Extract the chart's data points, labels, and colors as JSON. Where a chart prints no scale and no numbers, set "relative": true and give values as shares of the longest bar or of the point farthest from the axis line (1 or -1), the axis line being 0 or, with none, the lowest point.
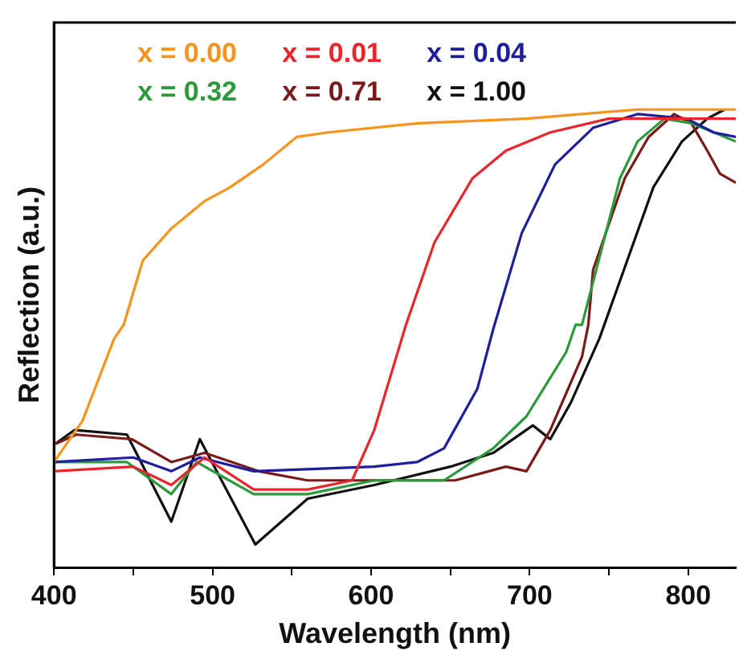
{
  "chart_data": {
    "type": "line",
    "xlabel": "Wavelength (nm)",
    "ylabel": "Reflection (a.u.)",
    "relative": true,
    "xlim": [
      400,
      830
    ],
    "xticks": [
      400,
      {
        "value": 450,
        "label": null
      },
      500,
      {
        "value": 550,
        "label": null
      },
      600,
      {
        "value": 650,
        "label": null
      },
      700,
      {
        "value": 750,
        "label": null
      },
      800
    ],
    "legend": "top left",
    "grid": false,
    "marker": "none",
    "line_style": "solid",
    "series": [
      {
        "name": "x = 0.00",
        "color": "#f7941d",
        "x": [
          400,
          418,
          438,
          444,
          456,
          474,
          495,
          511,
          532,
          553,
          573,
          630,
          698,
          768,
          830
        ],
        "values": [
          0.23,
          0.32,
          0.5,
          0.53,
          0.67,
          0.74,
          0.8,
          0.83,
          0.88,
          0.94,
          0.95,
          0.97,
          0.98,
          1.0,
          1.0
        ]
      },
      {
        "name": "x = 0.01",
        "color": "#e8262c",
        "x": [
          400,
          450,
          474,
          495,
          526,
          560,
          588,
          602,
          622,
          640,
          664,
          685,
          713,
          750,
          785,
          812,
          830
        ],
        "values": [
          0.21,
          0.22,
          0.18,
          0.24,
          0.17,
          0.17,
          0.19,
          0.3,
          0.53,
          0.71,
          0.85,
          0.91,
          0.95,
          0.98,
          0.98,
          0.98,
          0.98
        ]
      },
      {
        "name": "x = 0.04",
        "color": "#1f1f9e",
        "x": [
          400,
          450,
          474,
          492,
          526,
          602,
          629,
          646,
          667,
          677,
          695,
          716,
          740,
          768,
          799,
          816,
          830
        ],
        "values": [
          0.23,
          0.24,
          0.21,
          0.24,
          0.21,
          0.22,
          0.23,
          0.26,
          0.39,
          0.52,
          0.73,
          0.88,
          0.96,
          0.99,
          0.98,
          0.95,
          0.94
        ]
      },
      {
        "name": "x = 0.32",
        "color": "#2a9a3a",
        "x": [
          400,
          446,
          474,
          490,
          526,
          560,
          602,
          646,
          677,
          698,
          723,
          729,
          733,
          757,
          768,
          785,
          802,
          830
        ],
        "values": [
          0.23,
          0.23,
          0.16,
          0.23,
          0.16,
          0.16,
          0.19,
          0.19,
          0.26,
          0.33,
          0.47,
          0.53,
          0.53,
          0.85,
          0.93,
          0.98,
          0.97,
          0.93
        ]
      },
      {
        "name": "x = 0.71",
        "color": "#7a1a1a",
        "x": [
          401,
          414,
          449,
          474,
          495,
          529,
          560,
          602,
          653,
          685,
          698,
          713,
          733,
          737,
          740,
          760,
          775,
          791,
          802,
          812,
          820,
          830
        ],
        "values": [
          0.27,
          0.29,
          0.28,
          0.23,
          0.25,
          0.21,
          0.19,
          0.19,
          0.19,
          0.22,
          0.21,
          0.3,
          0.46,
          0.53,
          0.65,
          0.85,
          0.94,
          0.99,
          0.97,
          0.91,
          0.86,
          0.84
        ]
      },
      {
        "name": "x = 1.00",
        "color": "#111111",
        "x": [
          401,
          413,
          446,
          474,
          492,
          527,
          560,
          602,
          650,
          677,
          702,
          713,
          726,
          744,
          778,
          796,
          812,
          823
        ],
        "values": [
          0.27,
          0.3,
          0.29,
          0.1,
          0.28,
          0.05,
          0.15,
          0.18,
          0.22,
          0.25,
          0.31,
          0.28,
          0.36,
          0.5,
          0.83,
          0.93,
          0.98,
          1.0
        ]
      }
    ]
  }
}
